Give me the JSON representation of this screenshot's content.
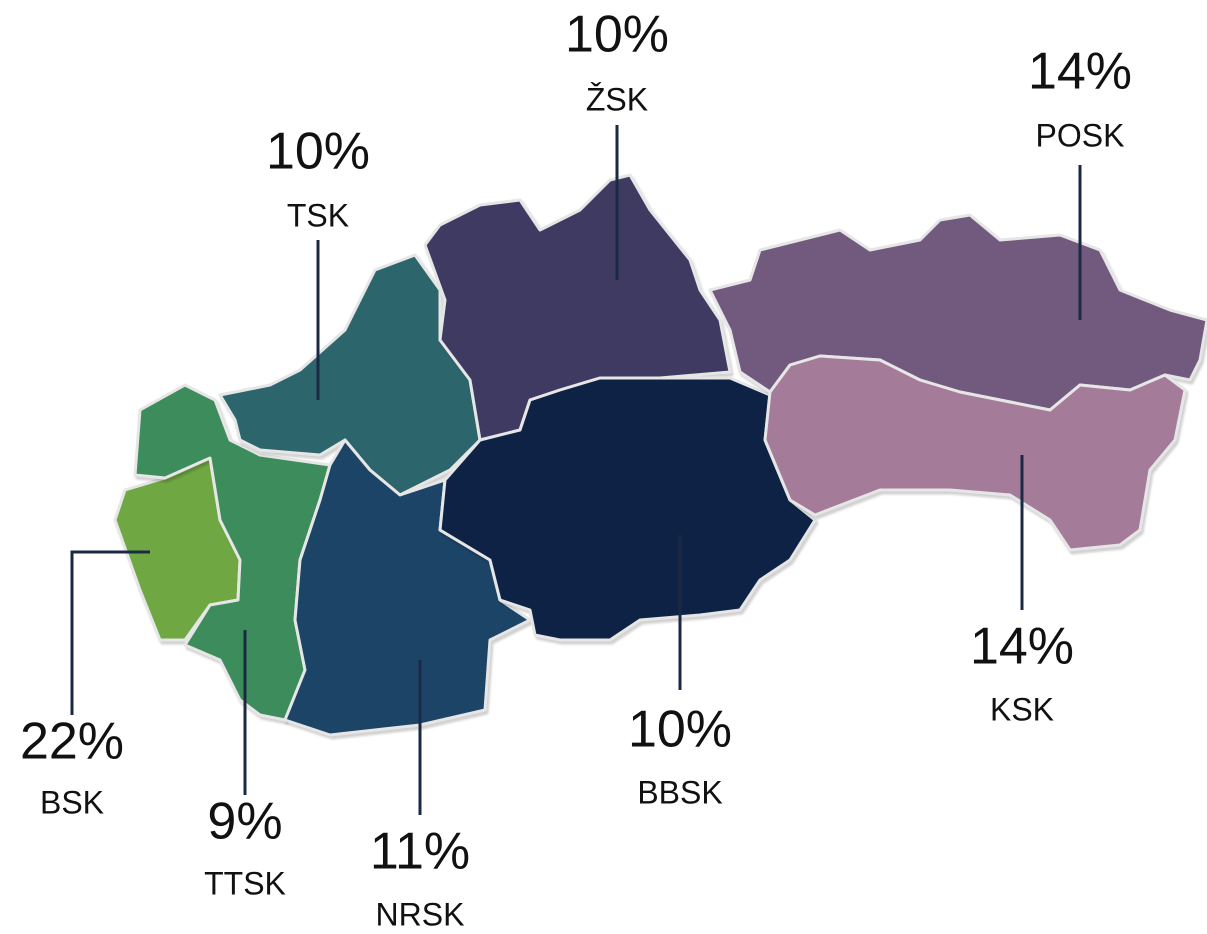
{
  "chart_data": {
    "type": "map",
    "categories": [
      "BSK",
      "TTSK",
      "TSK",
      "NRSK",
      "ŽSK",
      "BBSK",
      "POSK",
      "KSK"
    ],
    "values": [
      22,
      9,
      10,
      11,
      10,
      10,
      14,
      14
    ],
    "value_labels": [
      "22%",
      "9%",
      "10%",
      "11%",
      "10%",
      "10%",
      "14%",
      "14%"
    ],
    "colors": [
      "#6fa843",
      "#3d8c5c",
      "#2c666c",
      "#1c4466",
      "#3f3a62",
      "#0d2244",
      "#725a7e",
      "#a57b9a"
    ]
  }
}
